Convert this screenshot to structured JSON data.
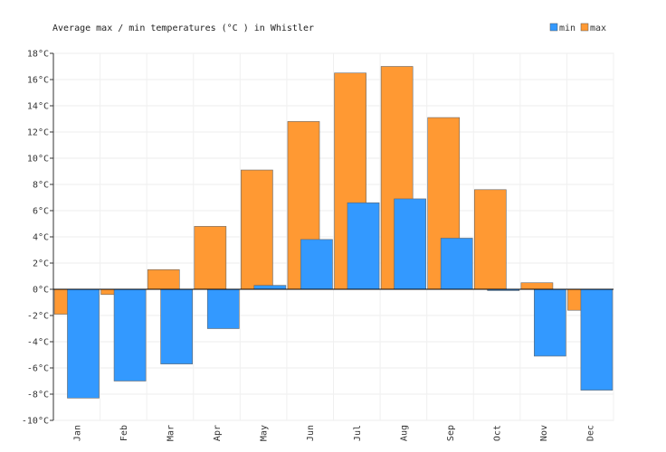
{
  "chart_data": {
    "type": "bar",
    "title": "Average max / min temperatures (°C ) in Whistler",
    "categories": [
      "Jan",
      "Feb",
      "Mar",
      "Apr",
      "May",
      "Jun",
      "Jul",
      "Aug",
      "Sep",
      "Oct",
      "Nov",
      "Dec"
    ],
    "series": [
      {
        "name": "min",
        "color": "#3399ff",
        "values": [
          -8.3,
          -7.0,
          -5.7,
          -3.0,
          0.3,
          3.8,
          6.6,
          6.9,
          3.9,
          -0.1,
          -5.1,
          -7.7
        ]
      },
      {
        "name": "max",
        "color": "#ff9933",
        "values": [
          -1.9,
          -0.4,
          1.5,
          4.8,
          9.1,
          12.8,
          16.5,
          17.0,
          13.1,
          7.6,
          0.5,
          -1.6
        ]
      }
    ],
    "ylim": [
      -10,
      18
    ],
    "yticks": [
      -10,
      -8,
      -6,
      -4,
      -2,
      0,
      2,
      4,
      6,
      8,
      10,
      12,
      14,
      16,
      18
    ],
    "ytick_suffix": "°C",
    "grid": true,
    "legend": "top-right"
  }
}
